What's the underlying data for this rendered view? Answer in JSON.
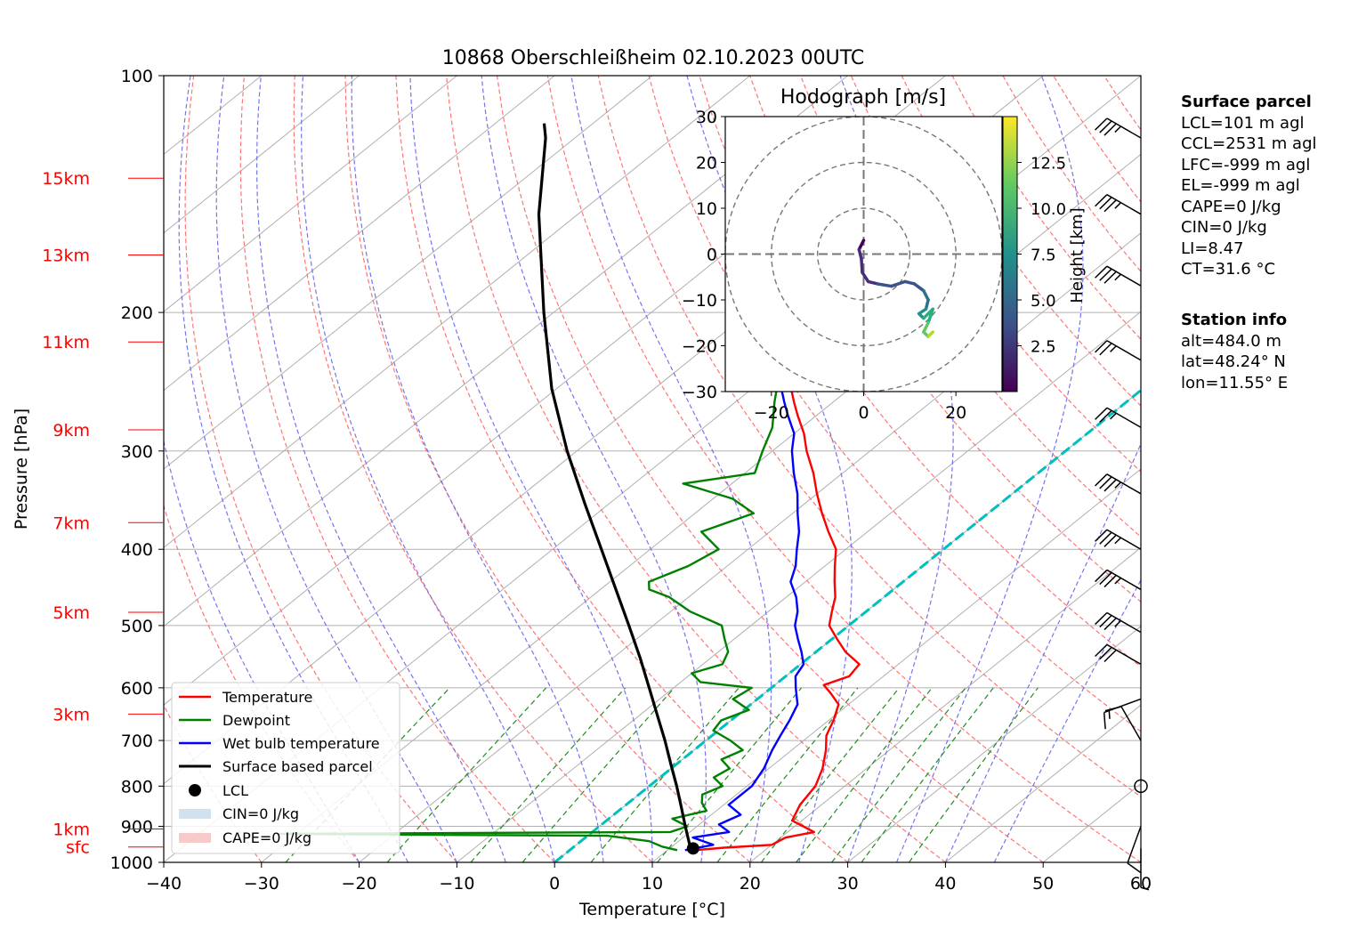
{
  "title": "10868 Oberschleißheim 02.10.2023 00UTC",
  "xlabel": "Temperature [°C]",
  "ylabel": "Pressure [hPa]",
  "pressure_ticks": [
    "100",
    "200",
    "300",
    "400",
    "500",
    "600",
    "700",
    "800",
    "900",
    "1000"
  ],
  "temp_ticks": [
    "−40",
    "−30",
    "−20",
    "−10",
    "0",
    "10",
    "20",
    "30",
    "40",
    "50",
    "60"
  ],
  "height_labels": [
    "15km",
    "13km",
    "11km",
    "9km",
    "7km",
    "5km",
    "3km",
    "1km",
    "sfc"
  ],
  "legend": {
    "temperature": "Temperature",
    "dewpoint": "Dewpoint",
    "wetbulb": "Wet bulb temperature",
    "parcel": "Surface based parcel",
    "lcl": "LCL",
    "cin": "CIN=0 J/kg",
    "cape": "CAPE=0 J/kg"
  },
  "hodograph": {
    "title": "Hodograph [m/s]",
    "colorbar_label": "Height [km]",
    "ticks": [
      "30",
      "20",
      "10",
      "0",
      "−10",
      "−20",
      "−30"
    ],
    "xticks": [
      "−20",
      "0",
      "20"
    ],
    "colorbar_ticks": [
      "12.5",
      "10.0",
      "7.5",
      "5.0",
      "2.5"
    ]
  },
  "surface_parcel": {
    "header": "Surface parcel",
    "lines": [
      "LCL=101 m agl",
      "CCL=2531 m agl",
      "LFC=-999 m agl",
      "EL=-999 m agl",
      "CAPE=0 J/kg",
      "CIN=0 J/kg",
      "LI=8.47",
      "CT=31.6 °C"
    ]
  },
  "station_info": {
    "header": "Station info",
    "lines": [
      "alt=484.0 m",
      "lat=48.24° N",
      "lon=11.55° E"
    ]
  },
  "colors": {
    "temperature": "#ff0000",
    "dewpoint": "#008000",
    "wetbulb": "#0000ff",
    "parcel": "#000000",
    "height_labels": "#ff0000",
    "dry_adiabats": "#ff6666",
    "moist_adiabats": "#6666ee",
    "mixing_ratio": "#228b22",
    "freezing_isotherm": "#00bfbf"
  },
  "chart_data": {
    "type": "line",
    "skew_t": true,
    "xlim": [
      -40,
      60
    ],
    "ylim": [
      1000,
      100
    ],
    "y_scale": "log",
    "grid": true,
    "legend_position": "lower-left",
    "lcl": {
      "p": 960,
      "t": 12.4
    },
    "series": [
      {
        "name": "Temperature",
        "color": "#ff0000",
        "points": [
          [
            965,
            12.8
          ],
          [
            958,
            15.5
          ],
          [
            950,
            20
          ],
          [
            930,
            20.5
          ],
          [
            915,
            22.7
          ],
          [
            885,
            19
          ],
          [
            845,
            17.8
          ],
          [
            800,
            17
          ],
          [
            760,
            15.5
          ],
          [
            720,
            13.5
          ],
          [
            690,
            11.7
          ],
          [
            660,
            10.5
          ],
          [
            630,
            9
          ],
          [
            610,
            6.8
          ],
          [
            595,
            5
          ],
          [
            580,
            6.5
          ],
          [
            560,
            6
          ],
          [
            540,
            3
          ],
          [
            520,
            0.5
          ],
          [
            500,
            -2
          ],
          [
            480,
            -3.5
          ],
          [
            460,
            -5
          ],
          [
            440,
            -7
          ],
          [
            420,
            -9
          ],
          [
            400,
            -11
          ],
          [
            380,
            -14
          ],
          [
            360,
            -17
          ],
          [
            340,
            -20
          ],
          [
            320,
            -23
          ],
          [
            300,
            -26.5
          ],
          [
            285,
            -29
          ],
          [
            270,
            -32
          ],
          [
            260,
            -34
          ],
          [
            250,
            -36
          ],
          [
            240,
            -37.5
          ],
          [
            230,
            -39.5
          ],
          [
            220,
            -41.5
          ],
          [
            210,
            -43.5
          ],
          [
            200,
            -45.5
          ],
          [
            190,
            -47.5
          ],
          [
            180,
            -49.5
          ],
          [
            170,
            -51.5
          ],
          [
            160,
            -53.5
          ],
          [
            150,
            -55.5
          ],
          [
            140,
            -57.5
          ],
          [
            130,
            -59.5
          ],
          [
            120,
            -61.5
          ],
          [
            115,
            -62.5
          ]
        ]
      },
      {
        "name": "Dewpoint",
        "color": "#008000",
        "points": [
          [
            965,
            11
          ],
          [
            955,
            9
          ],
          [
            940,
            7
          ],
          [
            925,
            2
          ],
          [
            920,
            -32
          ],
          [
            915,
            8
          ],
          [
            900,
            9
          ],
          [
            880,
            6.5
          ],
          [
            860,
            9
          ],
          [
            840,
            7.5
          ],
          [
            820,
            6.5
          ],
          [
            800,
            7.5
          ],
          [
            780,
            5.5
          ],
          [
            760,
            6
          ],
          [
            740,
            4
          ],
          [
            720,
            5
          ],
          [
            700,
            2.5
          ],
          [
            680,
            -0.5
          ],
          [
            660,
            -1
          ],
          [
            640,
            0.5
          ],
          [
            620,
            -2.5
          ],
          [
            600,
            -2
          ],
          [
            590,
            -8
          ],
          [
            575,
            -10
          ],
          [
            560,
            -8
          ],
          [
            540,
            -9
          ],
          [
            520,
            -11
          ],
          [
            500,
            -13
          ],
          [
            480,
            -18
          ],
          [
            460,
            -22
          ],
          [
            450,
            -25
          ],
          [
            440,
            -26
          ],
          [
            420,
            -24
          ],
          [
            400,
            -23
          ],
          [
            380,
            -27
          ],
          [
            360,
            -24
          ],
          [
            345,
            -28
          ],
          [
            330,
            -35
          ],
          [
            320,
            -29
          ],
          [
            300,
            -31
          ],
          [
            280,
            -33
          ],
          [
            260,
            -36
          ],
          [
            240,
            -39
          ],
          [
            225,
            -42
          ],
          [
            210,
            -47
          ],
          [
            195,
            -49
          ],
          [
            180,
            -53
          ],
          [
            170,
            -55
          ],
          [
            160,
            -58
          ],
          [
            150,
            -60
          ],
          [
            140,
            -63
          ],
          [
            130,
            -66
          ],
          [
            120,
            -69
          ],
          [
            115,
            -70
          ]
        ]
      },
      {
        "name": "Wet bulb temperature",
        "color": "#0000ff",
        "points": [
          [
            965,
            11.8
          ],
          [
            950,
            14
          ],
          [
            930,
            11
          ],
          [
            915,
            14
          ],
          [
            895,
            12
          ],
          [
            870,
            13
          ],
          [
            845,
            10.5
          ],
          [
            800,
            10.5
          ],
          [
            760,
            9.5
          ],
          [
            720,
            8
          ],
          [
            690,
            7
          ],
          [
            660,
            6
          ],
          [
            630,
            4.8
          ],
          [
            600,
            2.5
          ],
          [
            580,
            1
          ],
          [
            560,
            0.3
          ],
          [
            540,
            -1.5
          ],
          [
            520,
            -3.5
          ],
          [
            500,
            -5.5
          ],
          [
            480,
            -7
          ],
          [
            460,
            -9
          ],
          [
            440,
            -11.5
          ],
          [
            420,
            -13
          ],
          [
            400,
            -15
          ],
          [
            380,
            -17
          ],
          [
            360,
            -19.5
          ],
          [
            340,
            -22
          ],
          [
            320,
            -25
          ],
          [
            300,
            -28
          ],
          [
            285,
            -30
          ],
          [
            270,
            -33
          ],
          [
            260,
            -35
          ],
          [
            250,
            -37
          ],
          [
            240,
            -38.5
          ],
          [
            230,
            -40
          ],
          [
            220,
            -42
          ],
          [
            210,
            -44
          ],
          [
            200,
            -46
          ],
          [
            190,
            -48
          ],
          [
            180,
            -50
          ],
          [
            170,
            -52
          ],
          [
            160,
            -54
          ],
          [
            150,
            -56
          ],
          [
            140,
            -58
          ],
          [
            130,
            -60
          ],
          [
            120,
            -62
          ],
          [
            115,
            -63
          ]
        ]
      },
      {
        "name": "Surface based parcel",
        "color": "#000000",
        "points": [
          [
            965,
            12.5
          ],
          [
            950,
            11.6
          ],
          [
            900,
            8.8
          ],
          [
            850,
            5.9
          ],
          [
            800,
            2.8
          ],
          [
            750,
            -0.6
          ],
          [
            700,
            -4.2
          ],
          [
            650,
            -8.2
          ],
          [
            600,
            -12.5
          ],
          [
            550,
            -17.2
          ],
          [
            500,
            -22.5
          ],
          [
            450,
            -28.4
          ],
          [
            400,
            -35
          ],
          [
            350,
            -42.5
          ],
          [
            300,
            -51
          ],
          [
            250,
            -60.5
          ],
          [
            200,
            -71
          ],
          [
            150,
            -84
          ],
          [
            120,
            -93
          ],
          [
            115,
            -95
          ]
        ]
      }
    ],
    "hodograph": {
      "xlim": [
        -30,
        30
      ],
      "ylim": [
        -30,
        30
      ],
      "rings": [
        10,
        20,
        30
      ],
      "colorbar_range_km": [
        0,
        15
      ],
      "u": [
        0,
        -1,
        -0.5,
        -0.3,
        1,
        3,
        6,
        9,
        11,
        13,
        14,
        13.5,
        12,
        13,
        15,
        14,
        13,
        14,
        15
      ],
      "v": [
        3,
        1,
        -1,
        -4,
        -6,
        -6.5,
        -7,
        -6,
        -6.5,
        -8,
        -10,
        -12,
        -13,
        -14,
        -12,
        -15,
        -17,
        -18,
        -17
      ],
      "height_km": [
        0.5,
        1,
        1.5,
        2,
        2.5,
        3,
        3.5,
        4,
        4.5,
        5,
        6,
        7,
        8,
        9,
        10,
        11,
        12,
        13,
        14
      ]
    },
    "wind_barbs": [
      {
        "p": 120,
        "speed_kt": 35,
        "dir_deg": 300
      },
      {
        "p": 150,
        "speed_kt": 35,
        "dir_deg": 300
      },
      {
        "p": 185,
        "speed_kt": 35,
        "dir_deg": 300
      },
      {
        "p": 230,
        "speed_kt": 25,
        "dir_deg": 300
      },
      {
        "p": 280,
        "speed_kt": 25,
        "dir_deg": 300
      },
      {
        "p": 340,
        "speed_kt": 35,
        "dir_deg": 300
      },
      {
        "p": 400,
        "speed_kt": 35,
        "dir_deg": 300
      },
      {
        "p": 450,
        "speed_kt": 35,
        "dir_deg": 300
      },
      {
        "p": 510,
        "speed_kt": 35,
        "dir_deg": 300
      },
      {
        "p": 560,
        "speed_kt": 30,
        "dir_deg": 300
      },
      {
        "p": 620,
        "speed_kt": 15,
        "dir_deg": 250
      },
      {
        "p": 700,
        "speed_kt": 10,
        "dir_deg": 330
      },
      {
        "p": 800,
        "speed_kt": 0,
        "dir_deg": 0
      },
      {
        "p": 900,
        "speed_kt": 10,
        "dir_deg": 200
      },
      {
        "p": 960,
        "speed_kt": 5,
        "dir_deg": 180
      }
    ]
  }
}
